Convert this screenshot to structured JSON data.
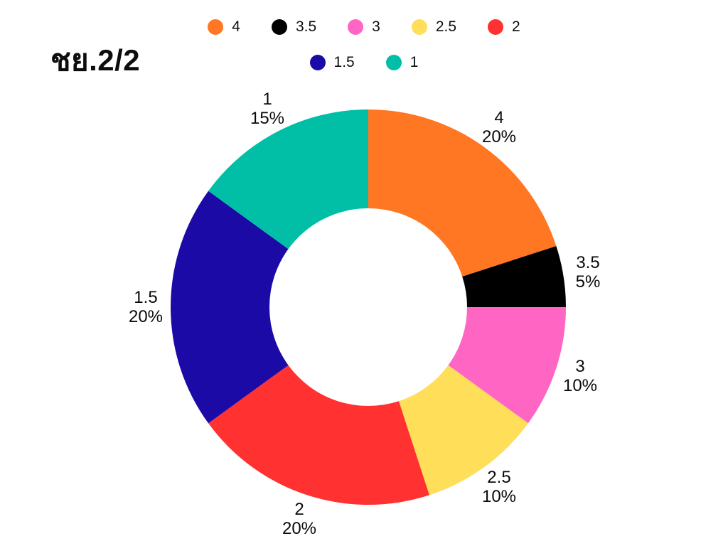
{
  "chart_data": {
    "type": "pie",
    "variant": "donut",
    "title": "ชย.2/2",
    "labels": [
      "4",
      "3.5",
      "3",
      "2.5",
      "2",
      "1.5",
      "1"
    ],
    "values": [
      20,
      5,
      10,
      10,
      20,
      20,
      15
    ],
    "value_unit": "%",
    "colors": [
      "#FF7722",
      "#000000",
      "#FF66C4",
      "#FFDE59",
      "#FF3131",
      "#1B0AA6",
      "#00BFA6"
    ],
    "start_angle_deg": 0,
    "direction": "clockwise",
    "inner_radius_ratio": 0.5,
    "legend_position": "top",
    "slice_label_style": "name-and-percent-outside",
    "background": "#FFFFFF",
    "text_color": "#0D0D0D"
  }
}
